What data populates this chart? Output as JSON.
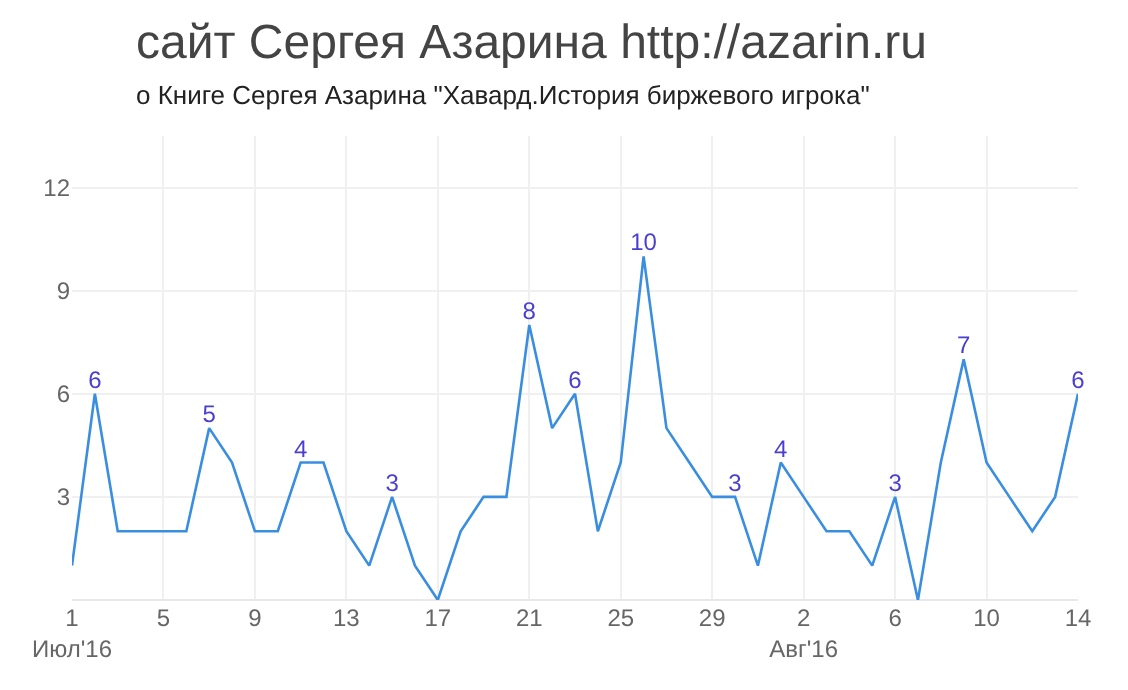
{
  "chart_data": {
    "type": "line",
    "title": "сайт Сергея Азарина http://azarin.ru",
    "subtitle": "о Книге Сергея Азарина \"Хавард.История биржевого игрока\"",
    "x": [
      "2016-07-01",
      "2016-07-02",
      "2016-07-03",
      "2016-07-04",
      "2016-07-05",
      "2016-07-06",
      "2016-07-07",
      "2016-07-08",
      "2016-07-09",
      "2016-07-10",
      "2016-07-11",
      "2016-07-12",
      "2016-07-13",
      "2016-07-14",
      "2016-07-15",
      "2016-07-16",
      "2016-07-17",
      "2016-07-18",
      "2016-07-19",
      "2016-07-20",
      "2016-07-21",
      "2016-07-22",
      "2016-07-23",
      "2016-07-24",
      "2016-07-25",
      "2016-07-26",
      "2016-07-27",
      "2016-07-28",
      "2016-07-29",
      "2016-07-30",
      "2016-07-31",
      "2016-08-01",
      "2016-08-02",
      "2016-08-03",
      "2016-08-04",
      "2016-08-05",
      "2016-08-06",
      "2016-08-07",
      "2016-08-08",
      "2016-08-09",
      "2016-08-10",
      "2016-08-11",
      "2016-08-12",
      "2016-08-13",
      "2016-08-14"
    ],
    "series": [
      {
        "color": "#3a8ee0",
        "values": [
          1,
          6,
          2,
          2,
          2,
          2,
          5,
          4,
          2,
          2,
          4,
          4,
          2,
          1,
          3,
          1,
          0,
          2,
          3,
          3,
          8,
          5,
          6,
          2,
          4,
          10,
          5,
          4,
          3,
          3,
          1,
          4,
          3,
          2,
          2,
          1,
          3,
          0,
          4,
          7,
          4,
          3,
          2,
          3,
          6
        ],
        "value_labels": [
          null,
          "6",
          null,
          null,
          null,
          null,
          "5",
          null,
          null,
          null,
          "4",
          null,
          null,
          null,
          "3",
          null,
          null,
          null,
          null,
          null,
          "8",
          null,
          "6",
          null,
          null,
          "10",
          null,
          null,
          null,
          "3",
          null,
          "4",
          null,
          null,
          null,
          null,
          "3",
          null,
          null,
          "7",
          null,
          null,
          null,
          null,
          "6"
        ]
      }
    ],
    "xlim": [
      "2016-07-01",
      "2016-08-14"
    ],
    "xticks": [
      {
        "value": "2016-07-01",
        "label": "1\nИюл'16"
      },
      {
        "value": "2016-07-05",
        "label": "5"
      },
      {
        "value": "2016-07-09",
        "label": "9"
      },
      {
        "value": "2016-07-13",
        "label": "13"
      },
      {
        "value": "2016-07-17",
        "label": "17"
      },
      {
        "value": "2016-07-21",
        "label": "21"
      },
      {
        "value": "2016-07-25",
        "label": "25"
      },
      {
        "value": "2016-07-29",
        "label": "29"
      },
      {
        "value": "2016-08-02",
        "label": "2\nАвг'16"
      },
      {
        "value": "2016-08-06",
        "label": "6"
      },
      {
        "value": "2016-08-10",
        "label": "10"
      },
      {
        "value": "2016-08-14",
        "label": "14"
      }
    ],
    "ylim": [
      0,
      13.5
    ],
    "yticks": [
      {
        "value": 0,
        "label": null
      },
      3,
      6,
      9,
      12
    ],
    "grid": true,
    "marker": "none",
    "line_style": "solid"
  }
}
